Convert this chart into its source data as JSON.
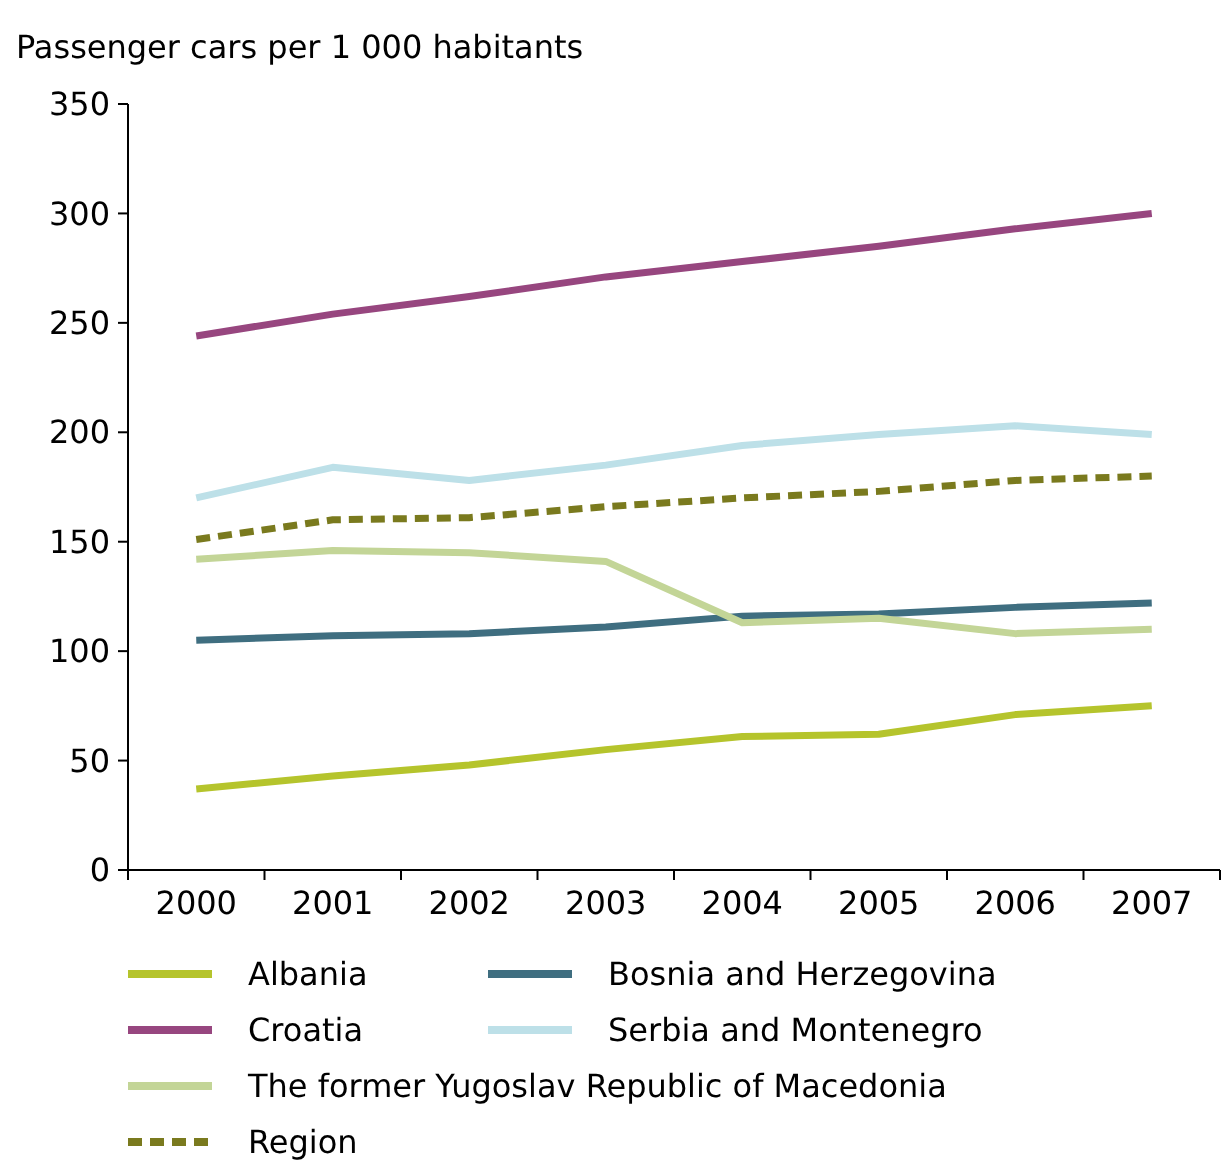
{
  "chart_data": {
    "type": "line",
    "ylabel": "Passenger cars per 1 000 habitants",
    "categories": [
      "2000",
      "2001",
      "2002",
      "2003",
      "2004",
      "2005",
      "2006",
      "2007"
    ],
    "ylim": [
      0,
      350
    ],
    "yticks": [
      0,
      50,
      100,
      150,
      200,
      250,
      300,
      350
    ],
    "grid": false,
    "legend": "bottom",
    "marker": "none",
    "series": [
      {
        "name": "Albania",
        "color": "#b5c42c",
        "values": [
          37,
          43,
          48,
          55,
          61,
          62,
          71,
          75
        ]
      },
      {
        "name": "Bosnia and Herzegovina",
        "color": "#3f6e80",
        "values": [
          105,
          107,
          108,
          111,
          116,
          117,
          120,
          122
        ]
      },
      {
        "name": "Croatia",
        "color": "#97467f",
        "values": [
          244,
          254,
          262,
          271,
          278,
          285,
          293,
          300
        ]
      },
      {
        "name": "Serbia and Montenegro",
        "color": "#bde0e8",
        "values": [
          170,
          184,
          178,
          185,
          194,
          199,
          203,
          199
        ]
      },
      {
        "name": "The former Yugoslav Republic of Macedonia",
        "color": "#c3d597",
        "values": [
          142,
          146,
          145,
          141,
          113,
          115,
          108,
          110
        ]
      },
      {
        "name": "Region",
        "color": "#7a7a1e",
        "line_style": "dashed",
        "values": [
          151,
          160,
          161,
          166,
          170,
          173,
          178,
          180
        ]
      }
    ]
  }
}
